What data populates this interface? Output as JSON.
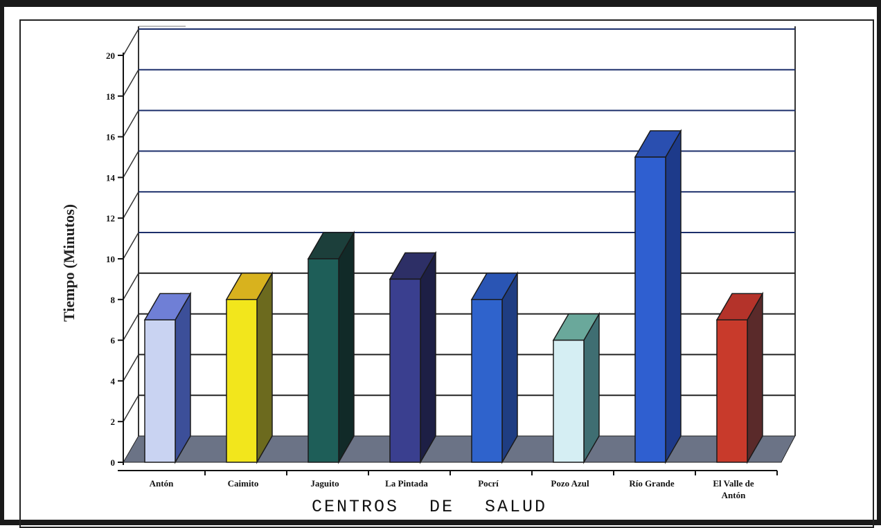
{
  "chart_data": {
    "type": "bar",
    "title": "",
    "ylabel": "Tiempo (Minutos)",
    "xlabel": "CENTROS DE SALUD",
    "ylim": [
      0,
      20
    ],
    "yticks": [
      0,
      2,
      4,
      6,
      8,
      10,
      12,
      14,
      16,
      18,
      20
    ],
    "ytick_labels": [
      "0",
      "2",
      "4",
      "6",
      "8",
      "10",
      "12",
      "14",
      "16",
      "18",
      "20"
    ],
    "grid": true,
    "three_d": true,
    "categories": [
      "Antón",
      "Caimito",
      "Jaguito",
      "La Pintada",
      "Pocrí",
      "Pozo Azul",
      "Río Grande",
      "El Valle de Antón"
    ],
    "category_label_lines": [
      [
        "Antón"
      ],
      [
        "Caimito"
      ],
      [
        "Jaguito"
      ],
      [
        "La Pintada"
      ],
      [
        "Pocrí"
      ],
      [
        "Pozo Azul"
      ],
      [
        "Río Grande"
      ],
      [
        "El Valle de",
        "Antón"
      ]
    ],
    "values": [
      7,
      8,
      10,
      9,
      8,
      6,
      15,
      7
    ],
    "bar_colors": [
      {
        "front": "#c9d3f2",
        "top": "#6f7fd6",
        "side": "#3c4f99"
      },
      {
        "front": "#f2e61c",
        "top": "#d8b21e",
        "side": "#6c6a1e"
      },
      {
        "front": "#1e5e58",
        "top": "#1c3f3b",
        "side": "#112a28"
      },
      {
        "front": "#3a3f8f",
        "top": "#2d2f66",
        "side": "#1d1f45"
      },
      {
        "front": "#2f63cc",
        "top": "#2a55b4",
        "side": "#1f3d82"
      },
      {
        "front": "#d5eef3",
        "top": "#6aa89b",
        "side": "#3f6e72"
      },
      {
        "front": "#2f5fd0",
        "top": "#2a4fb0",
        "side": "#1d3a8a"
      },
      {
        "front": "#c83a2b",
        "top": "#b4332a",
        "side": "#5a2a2a"
      }
    ],
    "floor_color": "#6b7386",
    "gridline_colors": {
      "upper": "#1c2f6b",
      "lower": "#222222"
    }
  }
}
